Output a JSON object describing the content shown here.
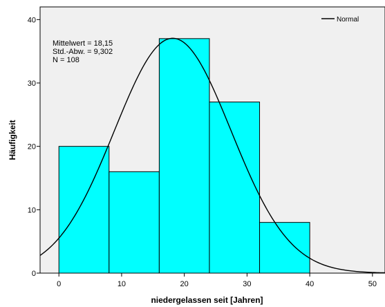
{
  "chart_data": {
    "type": "bar",
    "title": "",
    "xlabel": "niedergelassen seit [Jahren]",
    "ylabel": "Häufigkeit",
    "bins": [
      {
        "start": 0,
        "end": 8,
        "count": 20
      },
      {
        "start": 8,
        "end": 16,
        "count": 16
      },
      {
        "start": 16,
        "end": 24,
        "count": 37
      },
      {
        "start": 24,
        "end": 32,
        "count": 27
      },
      {
        "start": 32,
        "end": 40,
        "count": 8
      }
    ],
    "xlim": [
      -3,
      52
    ],
    "ylim": [
      0,
      42
    ],
    "xticks": [
      0,
      10,
      20,
      30,
      40,
      50
    ],
    "yticks": [
      0,
      10,
      20,
      30,
      40
    ],
    "normal_curve": {
      "mean": 18.15,
      "sd": 9.302,
      "n": 108,
      "bin_width": 8
    },
    "stats": [
      "Mittelwert = 18,15",
      "Std.-Abw. = 9,302",
      "N = 108"
    ],
    "legend": {
      "label": "Normal",
      "position": "top-right"
    },
    "grid": false,
    "colors": {
      "bar_fill": "#00ffff",
      "bar_stroke": "#000000",
      "plot_bg": "#f0f0f0",
      "curve": "#000000"
    }
  }
}
